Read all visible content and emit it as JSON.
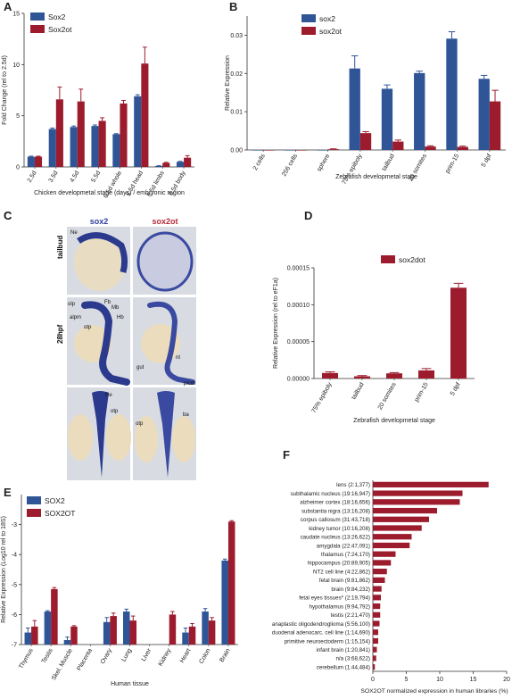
{
  "colors": {
    "blue": "#2f5597",
    "red": "#9c1c2e",
    "ish_blue": "#3b4da0",
    "ish_bg": "#d9dde3"
  },
  "chart_data": [
    {
      "id": "A",
      "panel": "A",
      "type": "bar",
      "categories": [
        "2.5d",
        "3.5d",
        "4.5d",
        "5.5d",
        "6.5d whole",
        "6.5d head",
        "6.5d limbs",
        "6.5d body"
      ],
      "series": [
        {
          "name": "Sox2",
          "color": "#2f5597",
          "values": [
            1.0,
            3.7,
            3.9,
            4.0,
            3.2,
            6.9,
            0.1,
            0.5
          ],
          "errors": [
            0.05,
            0.1,
            0.1,
            0.1,
            0.05,
            0.15,
            0.02,
            0.05
          ]
        },
        {
          "name": "Sox2ot",
          "color": "#9c1c2e",
          "values": [
            1.0,
            6.6,
            6.4,
            4.5,
            6.2,
            10.1,
            0.4,
            0.9
          ],
          "errors": [
            0.05,
            1.2,
            1.2,
            0.3,
            0.3,
            1.6,
            0.05,
            0.2
          ]
        }
      ],
      "ylabel": "Fold Change (rel to 2.5d)",
      "xlabel": "Chicken developmetal stage (days) / embryonic region",
      "ylim": [
        0,
        15
      ],
      "yticks": [
        0,
        5,
        10,
        15
      ],
      "ytick_labels": [
        "0",
        "5",
        "10",
        "15"
      ],
      "legend": "top-left"
    },
    {
      "id": "B",
      "panel": "B",
      "type": "bar",
      "categories": [
        "2 cells",
        "256 cells",
        "sphere",
        "75% epiboly",
        "tailbud",
        "20 somites",
        "prim-15",
        "5 dpf"
      ],
      "series": [
        {
          "name": "sox2",
          "color": "#2f5597",
          "values": [
            0,
            0,
            0,
            0.0213,
            0.016,
            0.0201,
            0.0291,
            0.0186
          ],
          "errors": [
            0,
            0,
            0,
            0.0033,
            0.001,
            0.0005,
            0.0018,
            0.0009
          ]
        },
        {
          "name": "sox2ot",
          "color": "#9c1c2e",
          "values": [
            0,
            0,
            0.0002,
            0.0044,
            0.0022,
            0.0009,
            0.0008,
            0.0127
          ],
          "errors": [
            0,
            0,
            0.0001,
            0.0004,
            0.0004,
            0.0002,
            0.0002,
            0.0029
          ]
        }
      ],
      "ylabel": "Relative Expression",
      "xlabel": "Zebrafish developmetal stage",
      "ylim": [
        0,
        0.035
      ],
      "yticks": [
        0,
        0.01,
        0.02,
        0.03
      ],
      "ytick_labels": [
        "0.00",
        "0.01",
        "0.02",
        "0.03"
      ],
      "legend": "top-left"
    },
    {
      "id": "D",
      "panel": "D",
      "type": "bar",
      "categories": [
        "75% epiboly",
        "tailbud",
        "20 somites",
        "prim-15",
        "5 dpf"
      ],
      "series": [
        {
          "name": "sox2dot",
          "color": "#9c1c2e",
          "values": [
            7.5e-06,
            3e-06,
            7e-06,
            1.1e-05,
            0.000123
          ],
          "errors": [
            1.5e-06,
            1e-06,
            1e-06,
            2.5e-06,
            6e-06
          ]
        }
      ],
      "ylabel": "Relative Expression (rel to eF1a)",
      "xlabel": "Zebrafish developmetal stage",
      "ylim": [
        0,
        0.00015
      ],
      "yticks": [
        0,
        5e-05,
        0.0001,
        0.00015
      ],
      "ytick_labels": [
        "0.00000",
        "0.00005",
        "0.00010",
        "0.00015"
      ],
      "legend": "top-left"
    },
    {
      "id": "E",
      "panel": "E",
      "type": "bar",
      "categories": [
        "Thymus",
        "Testis",
        "Skel. Muscle",
        "Placenta",
        "Ovary",
        "Lung",
        "Liver",
        "Kidney",
        "Heart",
        "Colon",
        "Brain"
      ],
      "series": [
        {
          "name": "SOX2",
          "color": "#2f5597",
          "values": [
            -6.6,
            -5.9,
            -6.85,
            null,
            -6.25,
            -5.9,
            null,
            null,
            -6.6,
            -5.9,
            -4.2
          ],
          "errors": [
            0.15,
            0.03,
            0.1,
            0,
            0.15,
            0.08,
            0,
            0,
            0.15,
            0.1,
            0.05
          ]
        },
        {
          "name": "SOX2OT",
          "color": "#9c1c2e",
          "values": [
            -6.4,
            -5.15,
            -6.4,
            null,
            -6.05,
            -6.2,
            null,
            -6.0,
            -6.4,
            -6.2,
            -2.9
          ],
          "errors": [
            0.2,
            0.05,
            0.03,
            0,
            0.1,
            0.15,
            0,
            0.1,
            0.1,
            0.1,
            0.03
          ]
        }
      ],
      "ylabel": "Relative Expression (Log10 rel to 18S)",
      "xlabel": "Human tissue",
      "ylim": [
        -7,
        -2
      ],
      "yticks": [
        -7,
        -6,
        -5,
        -4,
        -3
      ],
      "ytick_labels": [
        "-7",
        "-6",
        "-5",
        "-4",
        "-3"
      ],
      "legend": "top-left"
    },
    {
      "id": "F",
      "panel": "F",
      "type": "bar",
      "orientation": "horizontal",
      "categories": [
        "lens (2:1,377)",
        "subthalamic nucleus (19:16,947)",
        "alzheimer cortex (18:16,656)",
        "substantia nigra (13:16,208)",
        "corpus callosum (31:43,718)",
        "kidney tumor (10:16,208)",
        "caudate nucleus (13:26,622)",
        "amygdala (22:47,091)",
        "thalamus (7:24,170)",
        "hippocampus (20:89,905)",
        "NT2 cell line (4:22,862)",
        "fetal brain (9:81,862)",
        "brain (9:84,232)",
        "fetal eyes tissues* (2:19,794)",
        "hypothalamus (9:94,792)",
        "testis (2:21,470)",
        "anaplastic oligodendroglioma (5:56,100)",
        "duodenal adenocarc. cell line (1:14,690)",
        "primitive neuroectoderm (1:15,154)",
        "infant brain (1:20,841)",
        "n/a (3:68,622)",
        "cerebellum (1:44,484)"
      ],
      "values": [
        17.3,
        13.4,
        13.0,
        9.6,
        8.4,
        7.3,
        5.8,
        5.5,
        3.4,
        2.7,
        2.1,
        1.8,
        1.3,
        1.2,
        1.1,
        1.1,
        1.0,
        0.8,
        0.8,
        0.6,
        0.5,
        0.3
      ],
      "color": "#9c1c2e",
      "xlabel": "SOX2OT normalized expression in human libraries (%)",
      "xlim": [
        0,
        20
      ],
      "xticks": [
        0,
        5,
        10,
        15,
        20
      ],
      "xtick_labels": [
        "0",
        "5",
        "10",
        "15",
        "20"
      ]
    }
  ],
  "panel_c": {
    "letter": "C",
    "col_headers": [
      "sox2",
      "sox2ot"
    ],
    "row_labels": [
      "tailbud",
      "28hpf"
    ],
    "annotations": {
      "ne": "Ne",
      "fb": "Fb",
      "mb": "Mb",
      "olp": "olp",
      "alpm": "alpm",
      "hb": "Hb",
      "otp1": "otp",
      "nt": "nt",
      "gut": "gut",
      "picm": "picm",
      "re": "Re",
      "otp2": "otp",
      "otp3": "otp",
      "ba": "ba"
    }
  }
}
